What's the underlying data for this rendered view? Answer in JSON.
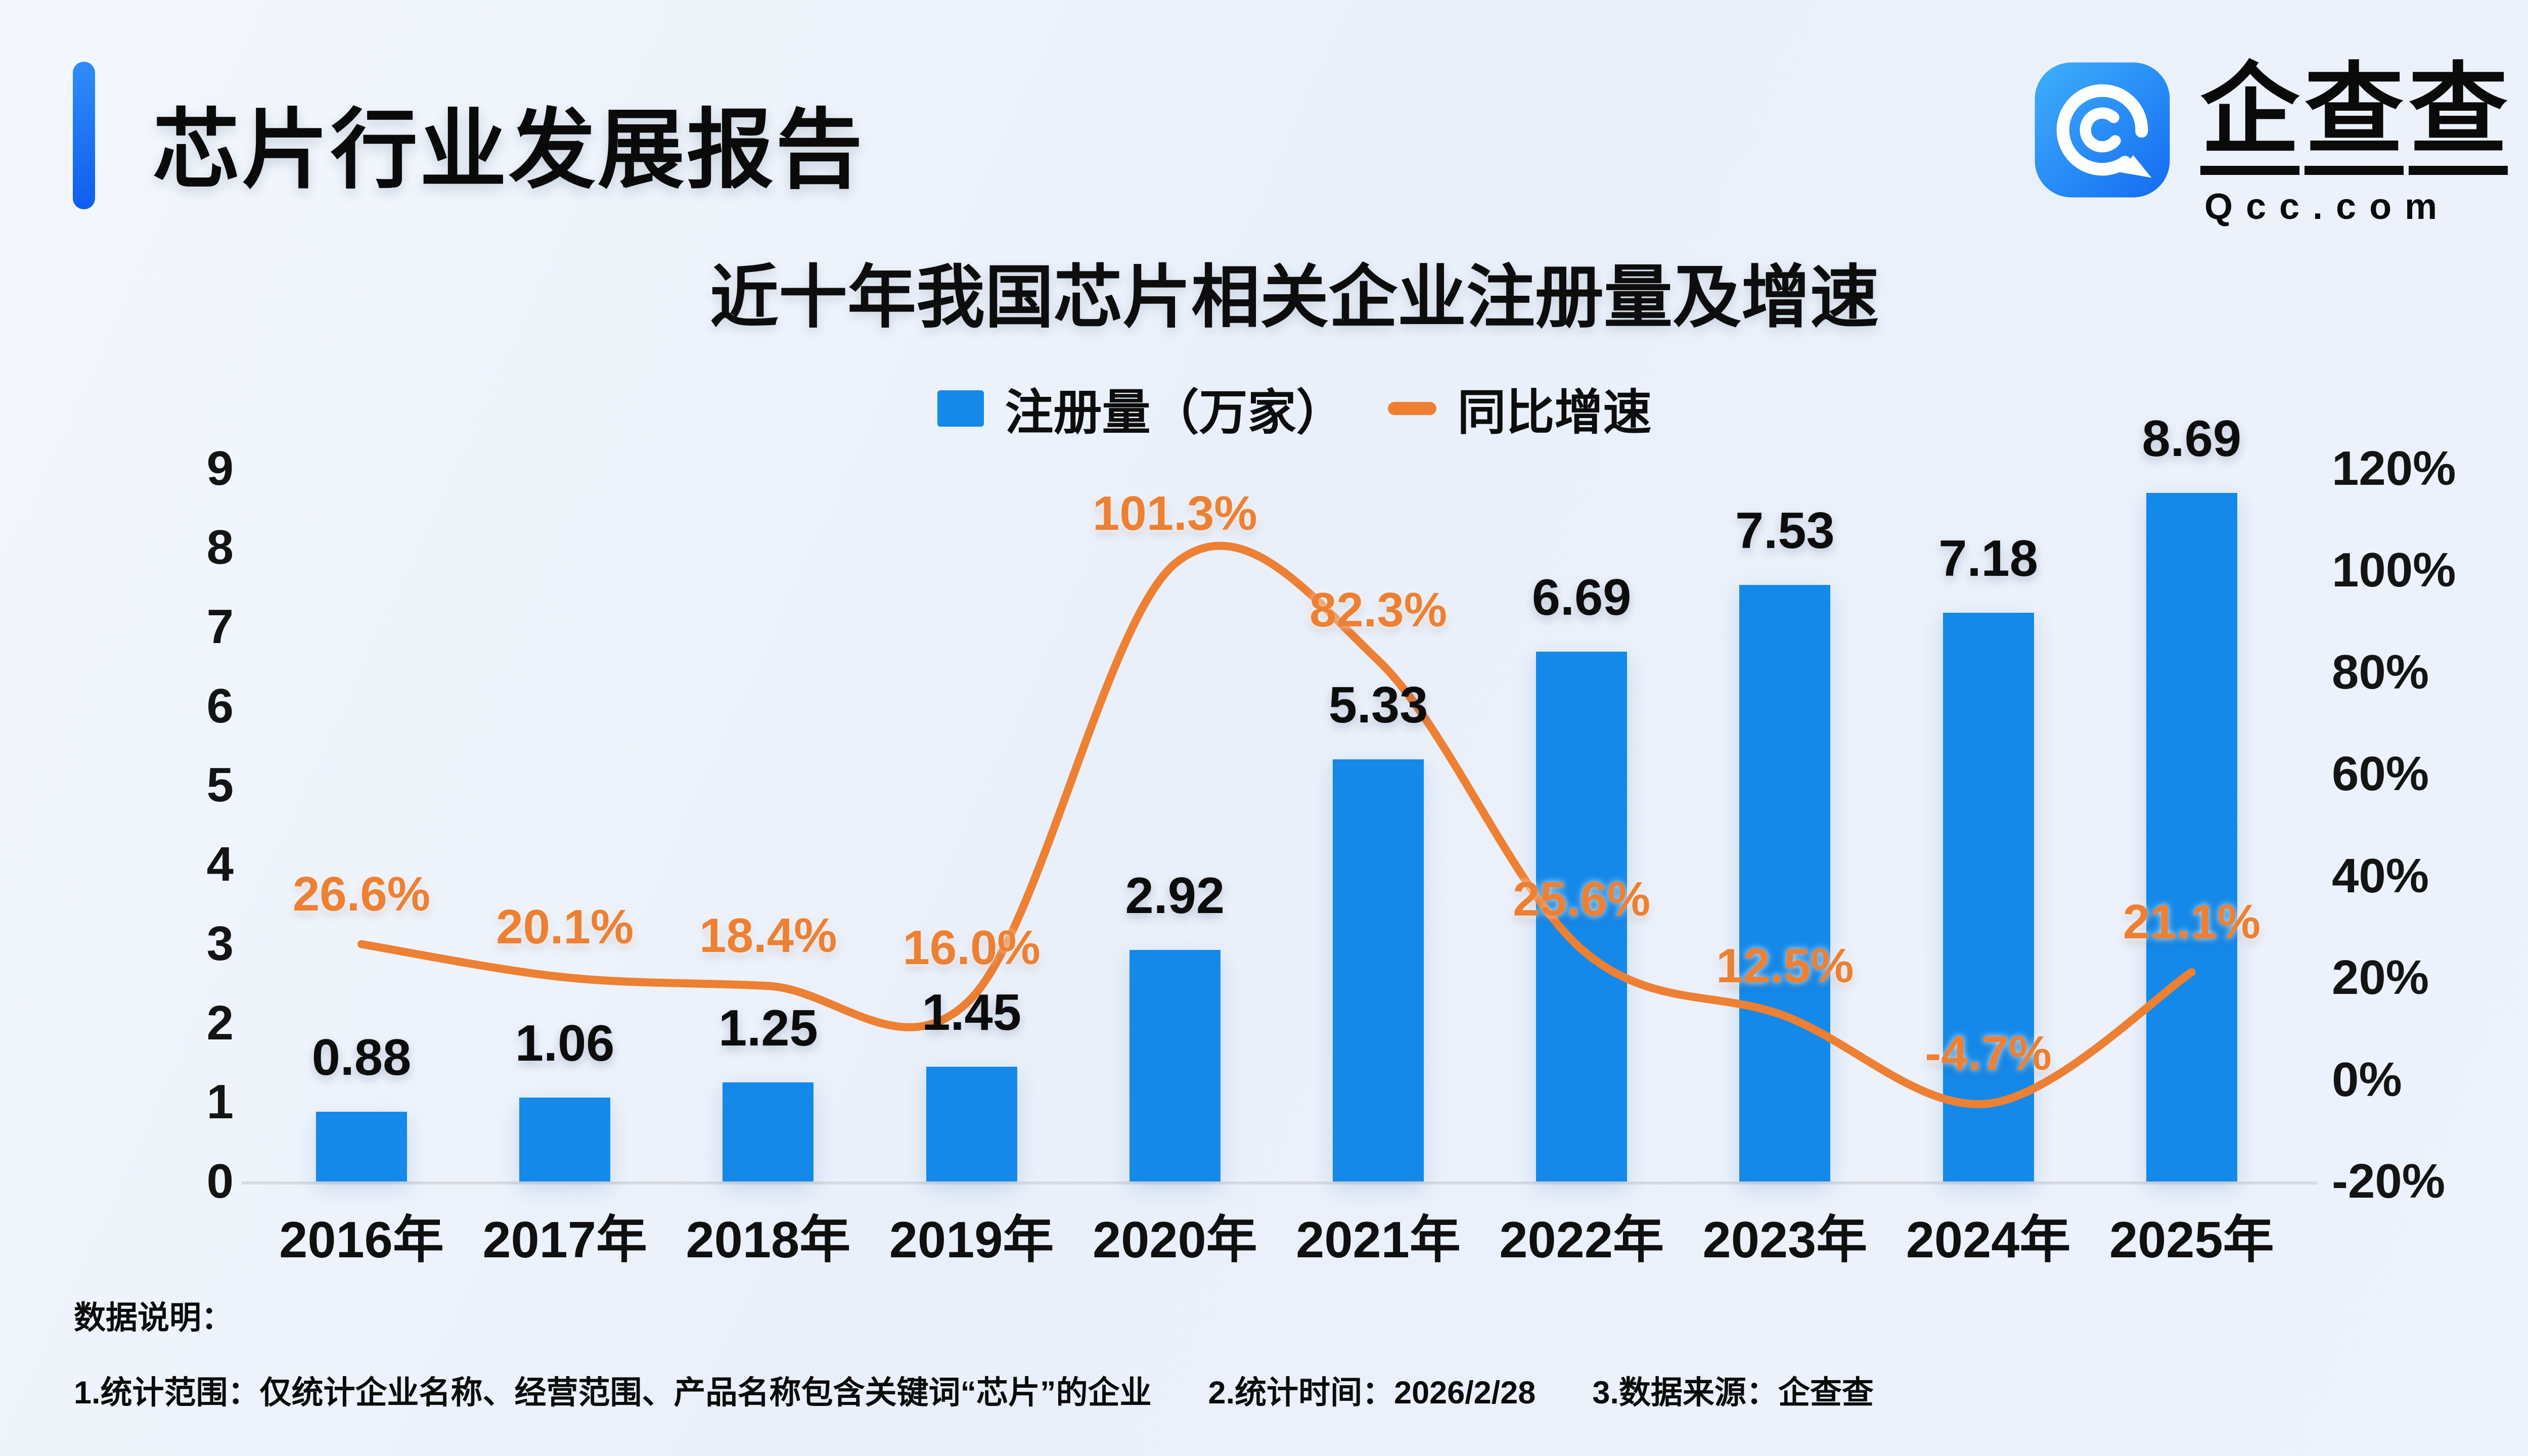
{
  "header": {
    "title": "芯片行业发展报告"
  },
  "logo": {
    "brand": "企查查",
    "brand_chars": [
      "企",
      "查",
      "查"
    ],
    "domain": "Qcc.com",
    "icon": "qcc-spiral-icon",
    "icon_colors": {
      "from": "#3FB0FB",
      "to": "#146BF2"
    }
  },
  "chart": {
    "title": "近十年我国芯片相关企业注册量及增速",
    "legend": [
      {
        "label": "注册量（万家）",
        "type": "bar",
        "color": "#1489E9"
      },
      {
        "label": "同比增速",
        "type": "line",
        "color": "#ED8033"
      }
    ]
  },
  "chart_data": {
    "type": "bar+line",
    "title": "近十年我国芯片相关企业注册量及增速",
    "categories": [
      "2016年",
      "2017年",
      "2018年",
      "2019年",
      "2020年",
      "2021年",
      "2022年",
      "2023年",
      "2024年",
      "2025年"
    ],
    "series": [
      {
        "name": "注册量（万家）",
        "type": "bar",
        "color": "#1489E9",
        "values": [
          0.88,
          1.06,
          1.25,
          1.45,
          2.92,
          5.33,
          6.69,
          7.53,
          7.18,
          8.69
        ],
        "labels": [
          "0.88",
          "1.06",
          "1.25",
          "1.45",
          "2.92",
          "5.33",
          "6.69",
          "7.53",
          "7.18",
          "8.69"
        ]
      },
      {
        "name": "同比增速",
        "type": "line",
        "color": "#ED8033",
        "values": [
          26.6,
          20.1,
          18.4,
          16.0,
          101.3,
          82.3,
          25.6,
          12.5,
          -4.7,
          21.1
        ],
        "labels": [
          "26.6%",
          "20.1%",
          "18.4%",
          "16.0%",
          "101.3%",
          "82.3%",
          "25.6%",
          "12.5%",
          "-4.7%",
          "21.1%"
        ]
      }
    ],
    "left_axis": {
      "min": 0,
      "max": 9,
      "ticks": [
        "0",
        "1",
        "2",
        "3",
        "4",
        "5",
        "6",
        "7",
        "8",
        "9"
      ]
    },
    "right_axis": {
      "min": -20,
      "max": 120,
      "ticks": [
        "-20%",
        "0%",
        "20%",
        "40%",
        "60%",
        "80%",
        "100%",
        "120%"
      ]
    },
    "grid": false,
    "legend_position": "top"
  },
  "notes": {
    "heading": "数据说明：",
    "items": [
      "1.统计范围：仅统计企业名称、经营范围、产品名称包含关键词“芯片”的企业",
      "2.统计时间：2026/2/28",
      "3.数据来源：企查查"
    ]
  }
}
